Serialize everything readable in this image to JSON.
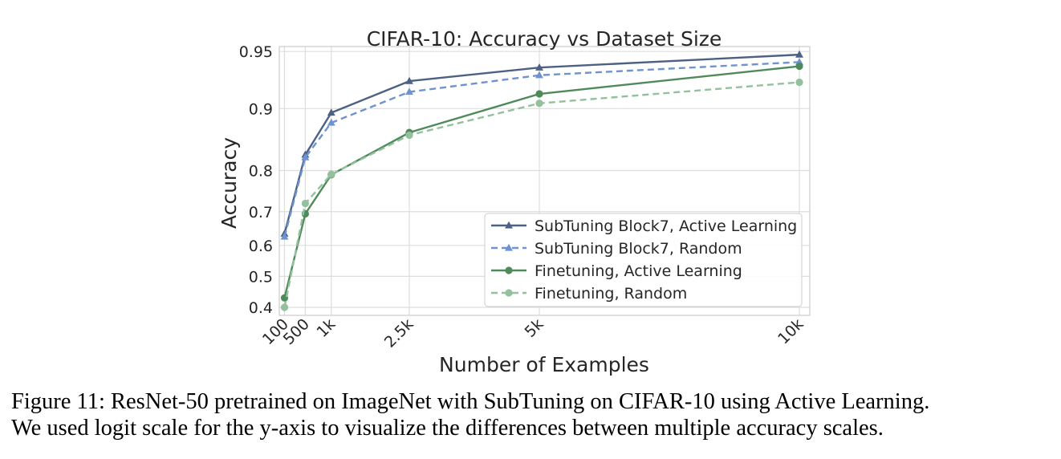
{
  "chart_data": {
    "type": "line",
    "title": "CIFAR-10: Accuracy vs Dataset Size",
    "xlabel": "Number of Examples",
    "ylabel": "Accuracy",
    "xscale": "linear",
    "yscale": "logit",
    "xlim": [
      0,
      10200
    ],
    "ylim": [
      0.375,
      0.953
    ],
    "x": [
      100,
      500,
      1000,
      2500,
      5000,
      10000
    ],
    "x_tick_labels": [
      "100",
      "500",
      "1k",
      "2.5k",
      "5k",
      "10k"
    ],
    "y_ticks": [
      0.4,
      0.5,
      0.6,
      0.7,
      0.8,
      0.9,
      0.95
    ],
    "y_tick_labels": [
      "0.4",
      "0.5",
      "0.6",
      "0.7",
      "0.8",
      "0.9",
      "0.95"
    ],
    "grid": true,
    "legend_position": "lower-right",
    "series": [
      {
        "name": "SubTuning Block7, Active Learning",
        "values": [
          0.636,
          0.831,
          0.895,
          0.928,
          0.939,
          0.948
        ],
        "color": "#4c6184",
        "linestyle": "solid",
        "marker": "triangle"
      },
      {
        "name": "SubTuning Block7, Random",
        "values": [
          0.627,
          0.826,
          0.882,
          0.918,
          0.933,
          0.943
        ],
        "color": "#6f93d0",
        "linestyle": "dashed",
        "marker": "triangle"
      },
      {
        "name": "Finetuning, Active Learning",
        "values": [
          0.43,
          0.694,
          0.791,
          0.868,
          0.916,
          0.94
        ],
        "color": "#4f8a5a",
        "linestyle": "solid",
        "marker": "circle"
      },
      {
        "name": "Finetuning, Random",
        "values": [
          0.4,
          0.722,
          0.792,
          0.864,
          0.906,
          0.927
        ],
        "color": "#93c09d",
        "linestyle": "dashed",
        "marker": "circle"
      }
    ]
  },
  "caption": {
    "line1": "Figure 11: ResNet-50 pretrained on ImageNet with SubTuning on CIFAR-10 using Active Learning.",
    "line2": "We used logit scale for the y-axis to visualize the differences between multiple accuracy scales."
  }
}
